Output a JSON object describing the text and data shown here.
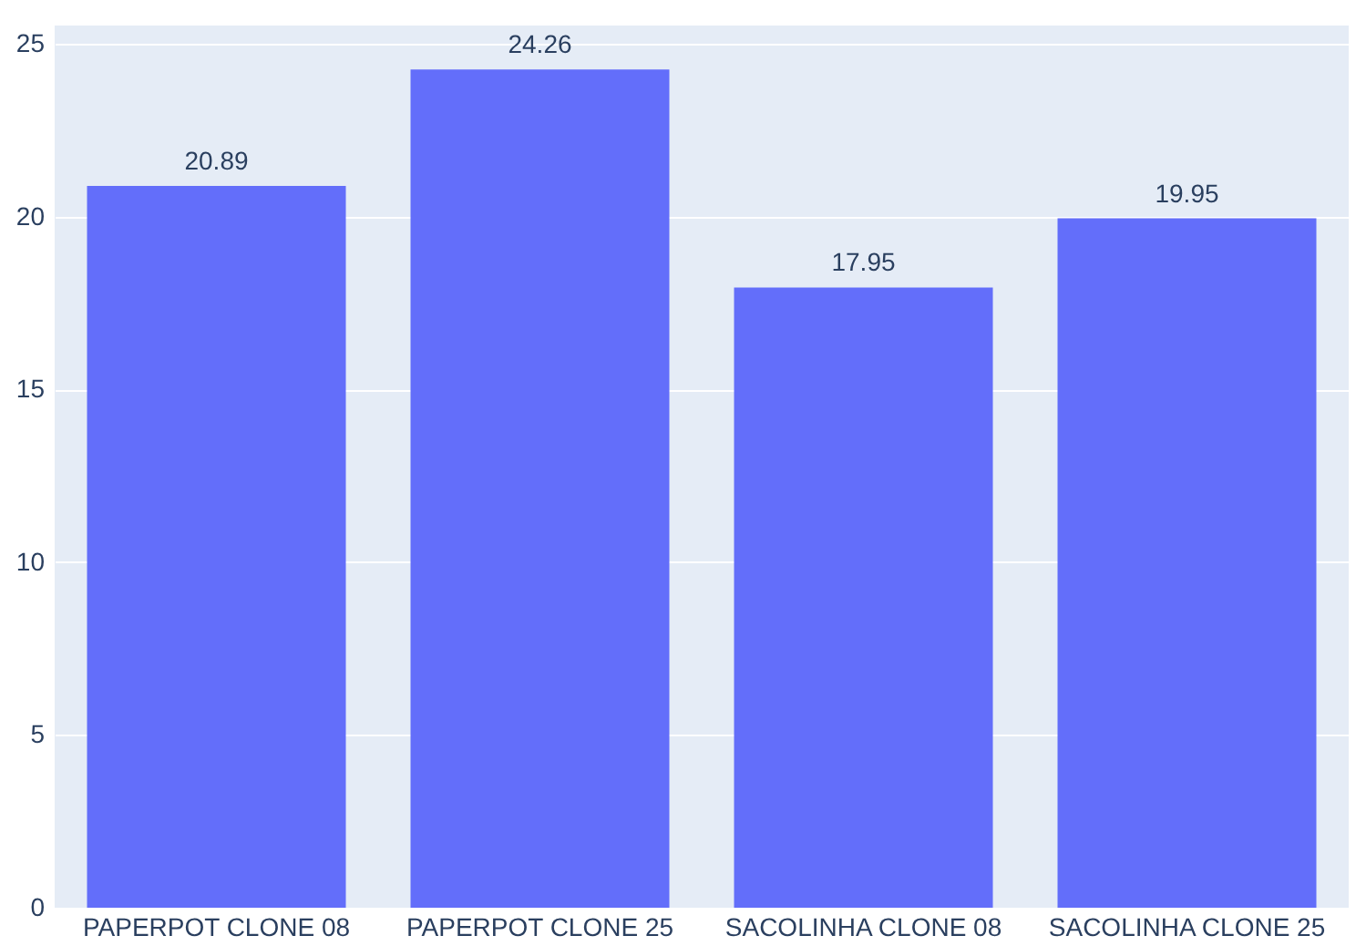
{
  "chart_data": {
    "type": "bar",
    "categories": [
      "PAPERPOT CLONE 08",
      "PAPERPOT CLONE 25",
      "SACOLINHA CLONE 08",
      "SACOLINHA CLONE 25"
    ],
    "values": [
      20.89,
      24.26,
      17.95,
      19.95
    ],
    "color": "#636efa",
    "ylim": [
      0,
      25.53
    ],
    "yticks": [
      0,
      5,
      10,
      15,
      20,
      25
    ],
    "grid": "y",
    "data_labels": true
  }
}
